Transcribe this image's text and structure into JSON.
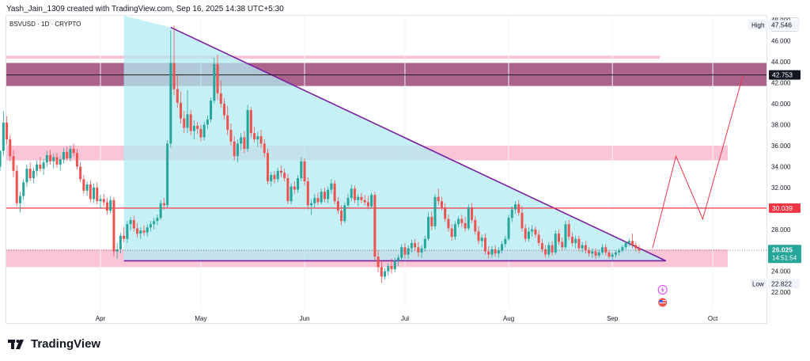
{
  "header": {
    "attribution": "Yash_Jain_1309 created with TradingView.com, Sep 16, 2025 14:38 UTC+5:30",
    "symbol": "BSVUSD · 1D · CRYPTO",
    "currency": "USD",
    "brand": "TradingView"
  },
  "colors": {
    "up": "#26a69a",
    "down": "#ef5350",
    "triangle_fill": "#b2ebf2",
    "triangle_line": "#7b1fa2",
    "resistance_zone": "#9c4777",
    "pink_zone": "#f8bbd0",
    "red_level": "#f23645",
    "projection": "#f23645"
  },
  "chart_data": {
    "type": "candlestick",
    "price_axis": {
      "ticks": [
        "48.000",
        "46.000",
        "44.000",
        "42.000",
        "40.000",
        "38.000",
        "36.000",
        "34.000",
        "32.000",
        "30.000",
        "28.000",
        "26.000",
        "24.000",
        "22.000"
      ],
      "ylim": [
        20.5,
        48.4
      ]
    },
    "time_axis": {
      "labels": [
        "Apr",
        "May",
        "Jun",
        "Jul",
        "Aug",
        "Sep",
        "Oct"
      ]
    },
    "labels": {
      "high_label": "High",
      "high_value": "47.546",
      "low_label": "Low",
      "low_value": "22.822",
      "level_42": "42.753",
      "level_30": "30.039",
      "last_price": "26.025",
      "countdown": "14:51:54"
    },
    "zones": [
      {
        "name": "resistance",
        "y": [
          41.7,
          43.9
        ]
      },
      {
        "name": "resistance-pink",
        "y": [
          34.6,
          36.0
        ]
      },
      {
        "name": "support-pink",
        "y": [
          24.4,
          26.1
        ]
      }
    ],
    "levels": [
      42.753,
      30.039
    ],
    "triangle": {
      "top": [
        "2025-04-22",
        47.3
      ],
      "apex": [
        "2025-09-17",
        25.0
      ],
      "base_start": [
        "2025-04-08",
        25.0
      ]
    },
    "projection": [
      [
        "2025-09-13",
        26.2
      ],
      [
        "2025-09-20",
        35.0
      ],
      [
        "2025-09-28",
        29.0
      ],
      [
        "2025-10-10",
        42.7
      ]
    ],
    "start_date": "2025-03-01",
    "candles": [
      {
        "o": 34.1,
        "h": 34.8,
        "l": 33.4,
        "c": 34.0
      },
      {
        "o": 34.0,
        "h": 35.6,
        "l": 33.6,
        "c": 35.5
      },
      {
        "o": 35.5,
        "h": 39.3,
        "l": 35.0,
        "c": 38.2
      },
      {
        "o": 38.2,
        "h": 38.8,
        "l": 36.1,
        "c": 36.6
      },
      {
        "o": 36.6,
        "h": 37.0,
        "l": 34.5,
        "c": 35.0
      },
      {
        "o": 35.0,
        "h": 35.6,
        "l": 33.0,
        "c": 33.6
      },
      {
        "o": 33.6,
        "h": 34.1,
        "l": 30.2,
        "c": 30.5
      },
      {
        "o": 30.5,
        "h": 31.6,
        "l": 29.6,
        "c": 31.2
      },
      {
        "o": 31.2,
        "h": 32.8,
        "l": 30.8,
        "c": 32.5
      },
      {
        "o": 32.5,
        "h": 34.2,
        "l": 32.1,
        "c": 33.8
      },
      {
        "o": 33.8,
        "h": 34.4,
        "l": 32.6,
        "c": 32.9
      },
      {
        "o": 32.9,
        "h": 33.9,
        "l": 32.4,
        "c": 33.6
      },
      {
        "o": 33.6,
        "h": 34.6,
        "l": 33.1,
        "c": 34.2
      },
      {
        "o": 34.2,
        "h": 34.9,
        "l": 33.5,
        "c": 33.8
      },
      {
        "o": 33.8,
        "h": 34.7,
        "l": 33.2,
        "c": 34.4
      },
      {
        "o": 34.4,
        "h": 35.5,
        "l": 34.0,
        "c": 35.1
      },
      {
        "o": 35.1,
        "h": 35.6,
        "l": 34.2,
        "c": 34.5
      },
      {
        "o": 34.5,
        "h": 35.2,
        "l": 33.8,
        "c": 34.9
      },
      {
        "o": 34.9,
        "h": 35.3,
        "l": 33.9,
        "c": 34.2
      },
      {
        "o": 34.2,
        "h": 35.0,
        "l": 33.6,
        "c": 34.7
      },
      {
        "o": 34.7,
        "h": 35.8,
        "l": 34.3,
        "c": 35.4
      },
      {
        "o": 35.4,
        "h": 35.9,
        "l": 34.6,
        "c": 34.8
      },
      {
        "o": 34.8,
        "h": 36.0,
        "l": 34.5,
        "c": 35.7
      },
      {
        "o": 35.7,
        "h": 36.2,
        "l": 35.0,
        "c": 35.3
      },
      {
        "o": 35.3,
        "h": 35.7,
        "l": 33.7,
        "c": 34.0
      },
      {
        "o": 34.0,
        "h": 34.4,
        "l": 32.5,
        "c": 32.8
      },
      {
        "o": 32.8,
        "h": 33.2,
        "l": 31.4,
        "c": 31.7
      },
      {
        "o": 31.7,
        "h": 32.6,
        "l": 31.2,
        "c": 32.3
      },
      {
        "o": 32.3,
        "h": 32.7,
        "l": 30.6,
        "c": 30.9
      },
      {
        "o": 30.9,
        "h": 32.4,
        "l": 30.5,
        "c": 32.0
      },
      {
        "o": 32.0,
        "h": 32.5,
        "l": 30.4,
        "c": 30.7
      },
      {
        "o": 30.7,
        "h": 31.3,
        "l": 30.0,
        "c": 30.9
      },
      {
        "o": 30.9,
        "h": 31.4,
        "l": 30.2,
        "c": 30.6
      },
      {
        "o": 30.6,
        "h": 31.0,
        "l": 29.4,
        "c": 29.8
      },
      {
        "o": 29.8,
        "h": 31.2,
        "l": 29.5,
        "c": 30.8
      },
      {
        "o": 30.8,
        "h": 31.1,
        "l": 25.4,
        "c": 25.9
      },
      {
        "o": 25.9,
        "h": 26.7,
        "l": 25.2,
        "c": 26.1
      },
      {
        "o": 26.1,
        "h": 27.7,
        "l": 25.7,
        "c": 27.4
      },
      {
        "o": 27.4,
        "h": 28.2,
        "l": 26.8,
        "c": 27.1
      },
      {
        "o": 27.1,
        "h": 28.8,
        "l": 26.7,
        "c": 28.5
      },
      {
        "o": 28.5,
        "h": 29.2,
        "l": 27.9,
        "c": 28.9
      },
      {
        "o": 28.9,
        "h": 29.3,
        "l": 27.8,
        "c": 28.1
      },
      {
        "o": 28.1,
        "h": 28.6,
        "l": 27.2,
        "c": 27.6
      },
      {
        "o": 27.6,
        "h": 28.2,
        "l": 27.1,
        "c": 27.9
      },
      {
        "o": 27.9,
        "h": 28.4,
        "l": 27.4,
        "c": 27.7
      },
      {
        "o": 27.7,
        "h": 28.5,
        "l": 27.3,
        "c": 28.2
      },
      {
        "o": 28.2,
        "h": 28.8,
        "l": 27.8,
        "c": 28.5
      },
      {
        "o": 28.5,
        "h": 29.1,
        "l": 28.0,
        "c": 28.8
      },
      {
        "o": 28.8,
        "h": 29.4,
        "l": 28.4,
        "c": 29.1
      },
      {
        "o": 29.1,
        "h": 30.8,
        "l": 28.9,
        "c": 30.5
      },
      {
        "o": 30.5,
        "h": 31.0,
        "l": 29.9,
        "c": 30.3
      },
      {
        "o": 30.3,
        "h": 36.5,
        "l": 30.1,
        "c": 36.2
      },
      {
        "o": 36.2,
        "h": 47.0,
        "l": 35.8,
        "c": 43.9
      },
      {
        "o": 43.9,
        "h": 47.5,
        "l": 40.8,
        "c": 41.4
      },
      {
        "o": 41.4,
        "h": 42.7,
        "l": 39.6,
        "c": 40.1
      },
      {
        "o": 40.1,
        "h": 41.2,
        "l": 38.1,
        "c": 38.6
      },
      {
        "o": 38.6,
        "h": 39.3,
        "l": 37.2,
        "c": 37.7
      },
      {
        "o": 37.7,
        "h": 41.3,
        "l": 37.2,
        "c": 39.0
      },
      {
        "o": 39.0,
        "h": 39.4,
        "l": 37.0,
        "c": 37.4
      },
      {
        "o": 37.4,
        "h": 38.4,
        "l": 36.6,
        "c": 37.9
      },
      {
        "o": 37.9,
        "h": 38.3,
        "l": 37.1,
        "c": 37.6
      },
      {
        "o": 37.6,
        "h": 38.0,
        "l": 36.4,
        "c": 36.8
      },
      {
        "o": 36.8,
        "h": 38.3,
        "l": 36.5,
        "c": 38.0
      },
      {
        "o": 38.0,
        "h": 38.9,
        "l": 37.6,
        "c": 38.5
      },
      {
        "o": 38.5,
        "h": 40.6,
        "l": 38.2,
        "c": 40.3
      },
      {
        "o": 40.3,
        "h": 44.4,
        "l": 40.0,
        "c": 43.8
      },
      {
        "o": 43.8,
        "h": 44.7,
        "l": 40.4,
        "c": 41.0
      },
      {
        "o": 41.0,
        "h": 42.2,
        "l": 39.6,
        "c": 40.0
      },
      {
        "o": 40.0,
        "h": 40.5,
        "l": 38.5,
        "c": 38.9
      },
      {
        "o": 38.9,
        "h": 39.8,
        "l": 37.0,
        "c": 37.5
      },
      {
        "o": 37.5,
        "h": 38.1,
        "l": 36.0,
        "c": 36.4
      },
      {
        "o": 36.4,
        "h": 36.9,
        "l": 34.6,
        "c": 35.0
      },
      {
        "o": 35.0,
        "h": 36.6,
        "l": 34.4,
        "c": 36.2
      },
      {
        "o": 36.2,
        "h": 37.2,
        "l": 35.6,
        "c": 36.8
      },
      {
        "o": 36.8,
        "h": 37.4,
        "l": 35.3,
        "c": 35.7
      },
      {
        "o": 35.7,
        "h": 39.9,
        "l": 35.4,
        "c": 39.4
      },
      {
        "o": 39.4,
        "h": 39.7,
        "l": 36.8,
        "c": 37.2
      },
      {
        "o": 37.2,
        "h": 37.8,
        "l": 36.3,
        "c": 36.6
      },
      {
        "o": 36.6,
        "h": 37.3,
        "l": 35.9,
        "c": 36.9
      },
      {
        "o": 36.9,
        "h": 37.5,
        "l": 35.8,
        "c": 36.2
      },
      {
        "o": 36.2,
        "h": 36.6,
        "l": 34.9,
        "c": 35.3
      },
      {
        "o": 35.3,
        "h": 35.7,
        "l": 32.3,
        "c": 32.6
      },
      {
        "o": 32.6,
        "h": 33.5,
        "l": 32.1,
        "c": 33.2
      },
      {
        "o": 33.2,
        "h": 33.6,
        "l": 32.4,
        "c": 32.8
      },
      {
        "o": 32.8,
        "h": 33.9,
        "l": 32.5,
        "c": 33.6
      },
      {
        "o": 33.6,
        "h": 34.1,
        "l": 33.0,
        "c": 33.4
      },
      {
        "o": 33.4,
        "h": 33.8,
        "l": 32.6,
        "c": 32.9
      },
      {
        "o": 32.9,
        "h": 33.3,
        "l": 30.4,
        "c": 30.7
      },
      {
        "o": 30.7,
        "h": 32.4,
        "l": 30.4,
        "c": 32.1
      },
      {
        "o": 32.1,
        "h": 32.6,
        "l": 31.4,
        "c": 31.8
      },
      {
        "o": 31.8,
        "h": 33.2,
        "l": 31.5,
        "c": 32.9
      },
      {
        "o": 32.9,
        "h": 34.9,
        "l": 32.6,
        "c": 34.5
      },
      {
        "o": 34.5,
        "h": 34.8,
        "l": 32.2,
        "c": 32.6
      },
      {
        "o": 32.6,
        "h": 33.0,
        "l": 29.9,
        "c": 30.3
      },
      {
        "o": 30.3,
        "h": 30.9,
        "l": 29.4,
        "c": 30.5
      },
      {
        "o": 30.5,
        "h": 31.4,
        "l": 30.1,
        "c": 31.0
      },
      {
        "o": 31.0,
        "h": 31.5,
        "l": 30.3,
        "c": 30.6
      },
      {
        "o": 30.6,
        "h": 31.9,
        "l": 30.4,
        "c": 31.6
      },
      {
        "o": 31.6,
        "h": 32.0,
        "l": 30.6,
        "c": 30.9
      },
      {
        "o": 30.9,
        "h": 32.1,
        "l": 30.5,
        "c": 31.8
      },
      {
        "o": 31.8,
        "h": 32.8,
        "l": 31.4,
        "c": 32.4
      },
      {
        "o": 32.4,
        "h": 32.7,
        "l": 30.4,
        "c": 30.7
      },
      {
        "o": 30.7,
        "h": 31.1,
        "l": 29.5,
        "c": 29.8
      },
      {
        "o": 29.8,
        "h": 30.3,
        "l": 28.4,
        "c": 28.8
      },
      {
        "o": 28.8,
        "h": 30.6,
        "l": 28.6,
        "c": 30.3
      },
      {
        "o": 30.3,
        "h": 31.4,
        "l": 30.0,
        "c": 31.0
      },
      {
        "o": 31.0,
        "h": 32.3,
        "l": 30.7,
        "c": 31.9
      },
      {
        "o": 31.9,
        "h": 32.2,
        "l": 30.5,
        "c": 30.8
      },
      {
        "o": 30.8,
        "h": 31.4,
        "l": 30.2,
        "c": 31.1
      },
      {
        "o": 31.1,
        "h": 31.5,
        "l": 30.5,
        "c": 30.8
      },
      {
        "o": 30.8,
        "h": 31.3,
        "l": 30.3,
        "c": 30.6
      },
      {
        "o": 30.6,
        "h": 31.2,
        "l": 29.9,
        "c": 30.2
      },
      {
        "o": 30.2,
        "h": 31.5,
        "l": 30.0,
        "c": 31.3
      },
      {
        "o": 31.3,
        "h": 31.6,
        "l": 25.0,
        "c": 25.4
      },
      {
        "o": 25.4,
        "h": 26.0,
        "l": 23.9,
        "c": 24.4
      },
      {
        "o": 24.4,
        "h": 25.1,
        "l": 22.9,
        "c": 23.5
      },
      {
        "o": 23.5,
        "h": 24.3,
        "l": 23.2,
        "c": 24.0
      },
      {
        "o": 24.0,
        "h": 24.8,
        "l": 23.6,
        "c": 24.5
      },
      {
        "o": 24.5,
        "h": 25.2,
        "l": 23.8,
        "c": 24.2
      },
      {
        "o": 24.2,
        "h": 25.3,
        "l": 23.9,
        "c": 25.0
      },
      {
        "o": 25.0,
        "h": 25.6,
        "l": 24.5,
        "c": 25.3
      },
      {
        "o": 25.3,
        "h": 26.6,
        "l": 25.0,
        "c": 26.3
      },
      {
        "o": 26.3,
        "h": 26.7,
        "l": 25.2,
        "c": 25.6
      },
      {
        "o": 25.6,
        "h": 26.5,
        "l": 25.2,
        "c": 26.2
      },
      {
        "o": 26.2,
        "h": 27.0,
        "l": 25.8,
        "c": 26.7
      },
      {
        "o": 26.7,
        "h": 27.1,
        "l": 25.9,
        "c": 26.3
      },
      {
        "o": 26.3,
        "h": 26.8,
        "l": 25.4,
        "c": 25.8
      },
      {
        "o": 25.8,
        "h": 26.5,
        "l": 25.3,
        "c": 26.2
      },
      {
        "o": 26.2,
        "h": 27.4,
        "l": 25.9,
        "c": 27.1
      },
      {
        "o": 27.1,
        "h": 29.6,
        "l": 26.9,
        "c": 29.2
      },
      {
        "o": 29.2,
        "h": 29.7,
        "l": 27.9,
        "c": 28.3
      },
      {
        "o": 28.3,
        "h": 31.4,
        "l": 28.0,
        "c": 31.1
      },
      {
        "o": 31.1,
        "h": 31.9,
        "l": 30.3,
        "c": 30.7
      },
      {
        "o": 30.7,
        "h": 31.1,
        "l": 29.8,
        "c": 30.1
      },
      {
        "o": 30.1,
        "h": 30.5,
        "l": 28.7,
        "c": 29.0
      },
      {
        "o": 29.0,
        "h": 29.4,
        "l": 27.8,
        "c": 28.1
      },
      {
        "o": 28.1,
        "h": 28.5,
        "l": 26.9,
        "c": 27.3
      },
      {
        "o": 27.3,
        "h": 28.8,
        "l": 27.0,
        "c": 28.5
      },
      {
        "o": 28.5,
        "h": 29.3,
        "l": 28.2,
        "c": 29.0
      },
      {
        "o": 29.0,
        "h": 29.4,
        "l": 28.2,
        "c": 28.6
      },
      {
        "o": 28.6,
        "h": 29.2,
        "l": 27.8,
        "c": 28.1
      },
      {
        "o": 28.1,
        "h": 30.4,
        "l": 27.9,
        "c": 30.1
      },
      {
        "o": 30.1,
        "h": 30.5,
        "l": 28.6,
        "c": 28.9
      },
      {
        "o": 28.9,
        "h": 29.3,
        "l": 27.5,
        "c": 27.8
      },
      {
        "o": 27.8,
        "h": 28.3,
        "l": 26.6,
        "c": 26.9
      },
      {
        "o": 26.9,
        "h": 27.5,
        "l": 26.3,
        "c": 27.2
      },
      {
        "o": 27.2,
        "h": 27.6,
        "l": 25.6,
        "c": 25.9
      },
      {
        "o": 25.9,
        "h": 26.4,
        "l": 25.2,
        "c": 25.6
      },
      {
        "o": 25.6,
        "h": 26.4,
        "l": 25.3,
        "c": 26.1
      },
      {
        "o": 26.1,
        "h": 26.5,
        "l": 25.4,
        "c": 25.7
      },
      {
        "o": 25.7,
        "h": 26.3,
        "l": 25.3,
        "c": 26.0
      },
      {
        "o": 26.0,
        "h": 26.9,
        "l": 25.7,
        "c": 26.6
      },
      {
        "o": 26.6,
        "h": 27.4,
        "l": 26.3,
        "c": 27.1
      },
      {
        "o": 27.1,
        "h": 29.4,
        "l": 26.9,
        "c": 29.1
      },
      {
        "o": 29.1,
        "h": 30.2,
        "l": 28.7,
        "c": 29.9
      },
      {
        "o": 29.9,
        "h": 30.7,
        "l": 29.5,
        "c": 30.4
      },
      {
        "o": 30.4,
        "h": 30.8,
        "l": 29.3,
        "c": 29.6
      },
      {
        "o": 29.6,
        "h": 30.2,
        "l": 27.8,
        "c": 28.1
      },
      {
        "o": 28.1,
        "h": 28.5,
        "l": 26.8,
        "c": 27.1
      },
      {
        "o": 27.1,
        "h": 28.2,
        "l": 26.8,
        "c": 27.8
      },
      {
        "o": 27.8,
        "h": 28.4,
        "l": 27.3,
        "c": 28.0
      },
      {
        "o": 28.0,
        "h": 28.3,
        "l": 27.2,
        "c": 27.5
      },
      {
        "o": 27.5,
        "h": 27.9,
        "l": 26.4,
        "c": 26.7
      },
      {
        "o": 26.7,
        "h": 27.1,
        "l": 25.8,
        "c": 26.1
      },
      {
        "o": 26.1,
        "h": 26.5,
        "l": 25.3,
        "c": 25.6
      },
      {
        "o": 25.6,
        "h": 26.8,
        "l": 25.3,
        "c": 26.5
      },
      {
        "o": 26.5,
        "h": 26.9,
        "l": 25.5,
        "c": 25.8
      },
      {
        "o": 25.8,
        "h": 27.9,
        "l": 25.6,
        "c": 27.6
      },
      {
        "o": 27.6,
        "h": 28.0,
        "l": 26.5,
        "c": 26.8
      },
      {
        "o": 26.8,
        "h": 27.2,
        "l": 26.0,
        "c": 26.3
      },
      {
        "o": 26.3,
        "h": 28.8,
        "l": 26.1,
        "c": 28.5
      },
      {
        "o": 28.5,
        "h": 28.9,
        "l": 27.0,
        "c": 27.3
      },
      {
        "o": 27.3,
        "h": 27.7,
        "l": 26.4,
        "c": 26.7
      },
      {
        "o": 26.7,
        "h": 27.4,
        "l": 26.2,
        "c": 27.1
      },
      {
        "o": 27.1,
        "h": 27.4,
        "l": 25.9,
        "c": 26.2
      },
      {
        "o": 26.2,
        "h": 26.8,
        "l": 25.8,
        "c": 26.5
      },
      {
        "o": 26.5,
        "h": 26.9,
        "l": 25.7,
        "c": 26.0
      },
      {
        "o": 26.0,
        "h": 26.3,
        "l": 25.4,
        "c": 25.7
      },
      {
        "o": 25.7,
        "h": 26.2,
        "l": 25.3,
        "c": 25.9
      },
      {
        "o": 25.9,
        "h": 26.2,
        "l": 25.2,
        "c": 25.5
      },
      {
        "o": 25.5,
        "h": 26.1,
        "l": 25.3,
        "c": 25.8
      },
      {
        "o": 25.8,
        "h": 26.6,
        "l": 25.6,
        "c": 26.3
      },
      {
        "o": 26.3,
        "h": 26.6,
        "l": 25.5,
        "c": 25.8
      },
      {
        "o": 25.8,
        "h": 26.0,
        "l": 25.2,
        "c": 25.4
      },
      {
        "o": 25.4,
        "h": 25.8,
        "l": 25.1,
        "c": 25.6
      },
      {
        "o": 25.6,
        "h": 26.0,
        "l": 25.3,
        "c": 25.8
      },
      {
        "o": 25.8,
        "h": 26.2,
        "l": 25.5,
        "c": 26.0
      },
      {
        "o": 26.0,
        "h": 26.5,
        "l": 25.8,
        "c": 26.3
      },
      {
        "o": 26.3,
        "h": 26.9,
        "l": 26.1,
        "c": 26.7
      },
      {
        "o": 26.7,
        "h": 27.1,
        "l": 26.4,
        "c": 26.9
      },
      {
        "o": 26.9,
        "h": 27.6,
        "l": 26.2,
        "c": 26.5
      },
      {
        "o": 26.5,
        "h": 26.8,
        "l": 25.9,
        "c": 26.2
      },
      {
        "o": 26.2,
        "h": 26.5,
        "l": 25.7,
        "c": 26.0
      }
    ]
  }
}
